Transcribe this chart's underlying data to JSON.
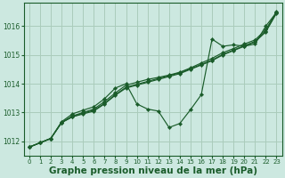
{
  "background_color": "#cce8e0",
  "grid_color": "#aaccbb",
  "line_color": "#1a5c2a",
  "xlabel": "Graphe pression niveau de la mer (hPa)",
  "xlabel_fontsize": 7.5,
  "ylim": [
    1011.5,
    1016.8
  ],
  "xlim": [
    -0.5,
    23.5
  ],
  "yticks": [
    1012,
    1013,
    1014,
    1015,
    1016
  ],
  "xticks": [
    0,
    1,
    2,
    3,
    4,
    5,
    6,
    7,
    8,
    9,
    10,
    11,
    12,
    13,
    14,
    15,
    16,
    17,
    18,
    19,
    20,
    21,
    22,
    23
  ],
  "series": [
    [
      1011.8,
      1011.95,
      1012.1,
      1012.65,
      1012.85,
      1012.95,
      1013.05,
      1013.3,
      1013.6,
      1013.85,
      1013.95,
      1014.05,
      1014.15,
      1014.25,
      1014.35,
      1014.5,
      1014.65,
      1014.8,
      1015.0,
      1015.15,
      1015.3,
      1015.45,
      1015.8,
      1016.45
    ],
    [
      1011.8,
      1011.95,
      1012.1,
      1012.65,
      1012.85,
      1012.98,
      1013.08,
      1013.32,
      1013.62,
      1013.88,
      1013.98,
      1014.08,
      1014.18,
      1014.28,
      1014.38,
      1014.52,
      1014.67,
      1014.82,
      1015.02,
      1015.17,
      1015.32,
      1015.47,
      1015.82,
      1016.47
    ],
    [
      1011.8,
      1011.95,
      1012.1,
      1012.65,
      1012.88,
      1013.0,
      1013.12,
      1013.38,
      1013.68,
      1013.95,
      1014.05,
      1014.15,
      1014.22,
      1014.3,
      1014.4,
      1014.55,
      1014.72,
      1014.88,
      1015.08,
      1015.22,
      1015.38,
      1015.52,
      1015.88,
      1016.5
    ],
    [
      1011.8,
      1011.95,
      1012.1,
      1012.68,
      1012.95,
      1013.08,
      1013.2,
      1013.48,
      1013.85,
      1014.0,
      1013.3,
      1013.12,
      1013.05,
      1012.48,
      1012.62,
      1013.1,
      1013.62,
      1015.55,
      1015.3,
      1015.35,
      1015.3,
      1015.38,
      1016.0,
      1016.48
    ]
  ]
}
